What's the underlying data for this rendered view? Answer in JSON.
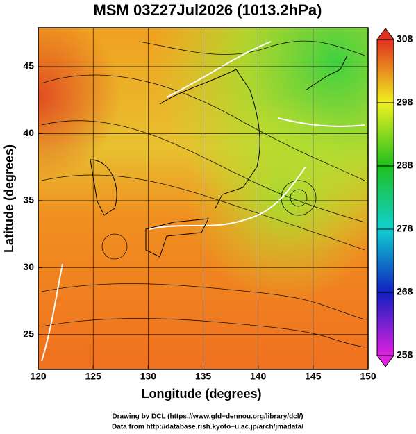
{
  "chart_data": {
    "type": "map",
    "title": "MSM 03Z27Jul2026 (1013.2hPa)",
    "xlabel": "Longitude (degrees)",
    "ylabel": "Latitude  (degrees)",
    "xlim": [
      120,
      150
    ],
    "xticks": [
      120,
      125,
      130,
      135,
      140,
      145,
      150
    ],
    "ylim": [
      22.4,
      47.9
    ],
    "yticks": [
      25,
      30,
      35,
      40,
      45
    ],
    "grid": true,
    "colorbar": {
      "lim": [
        258,
        308
      ],
      "ticks": [
        258,
        268,
        278,
        288,
        298,
        308
      ],
      "colors": [
        "#e020e0",
        "#1020c0",
        "#10d0d0",
        "#20c020",
        "#f0f020",
        "#e03020"
      ]
    }
  },
  "credits": [
    "Drawing by DCL (https://www.gfd−dennou.org/library/dcl/)",
    "Data from http://database.rish.kyoto−u.ac.jp/arch/jmadata/"
  ]
}
